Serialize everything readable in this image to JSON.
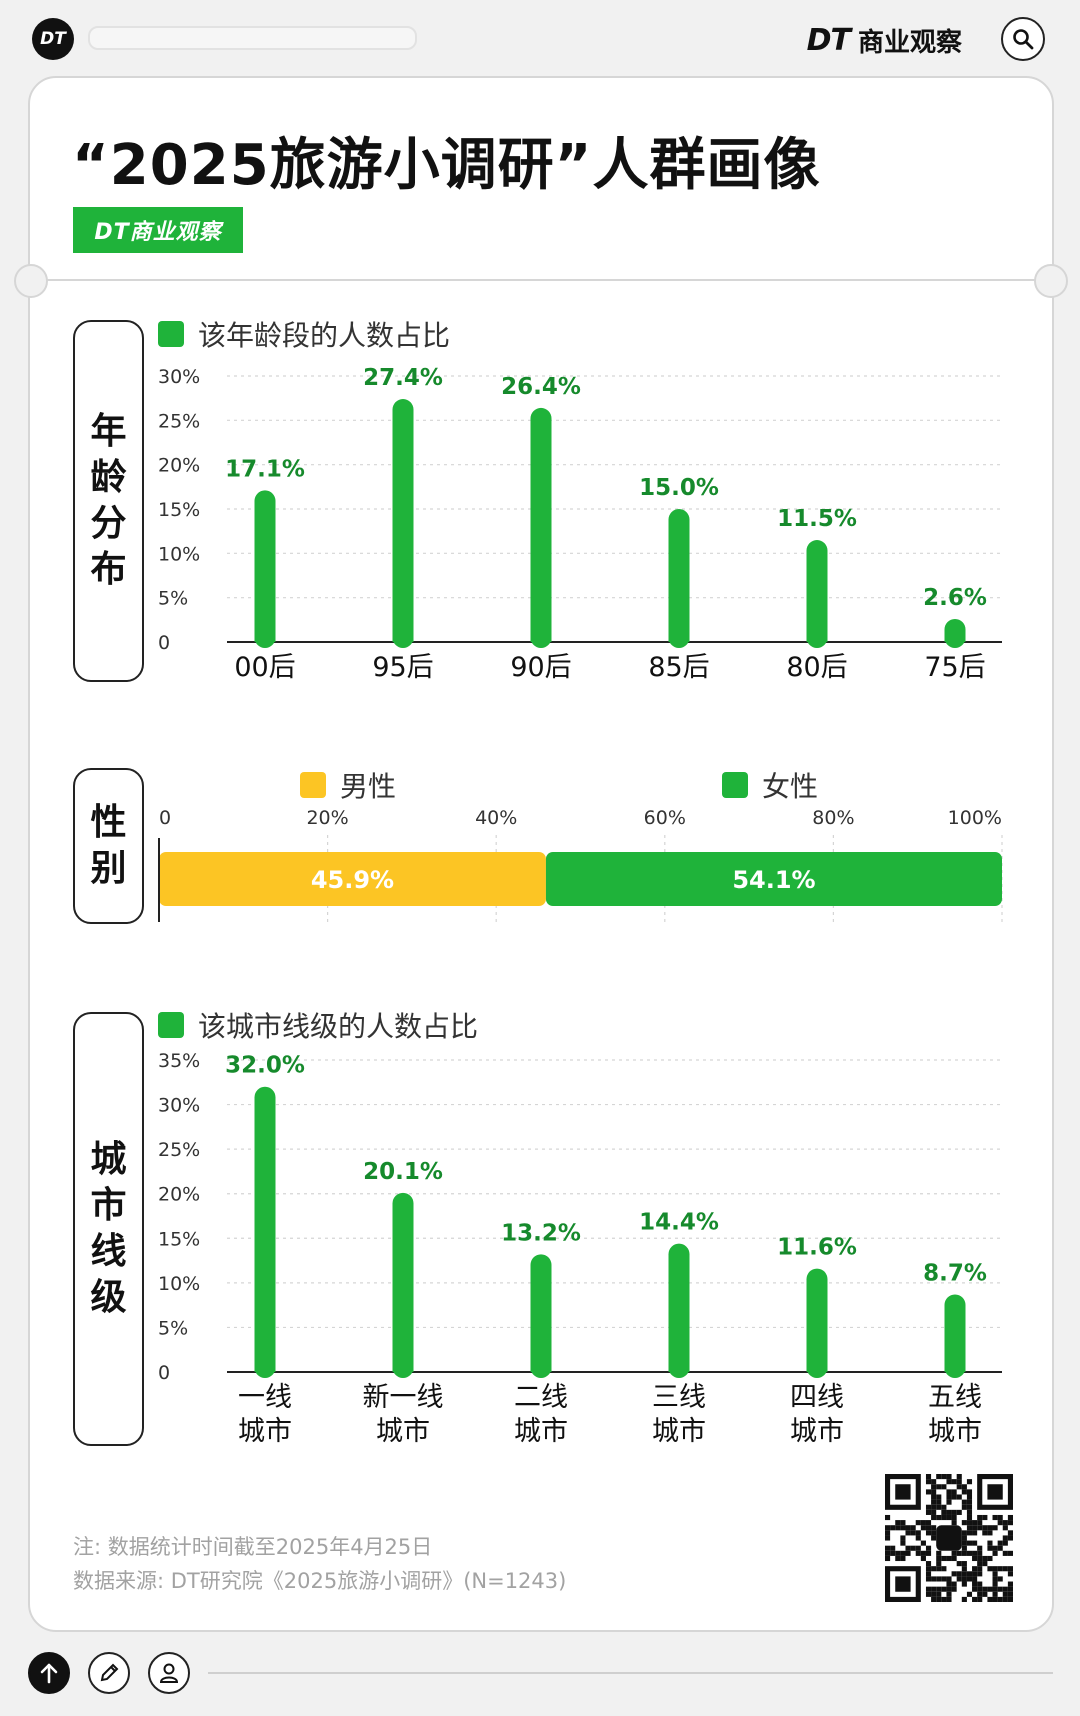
{
  "header": {
    "logo": "DT",
    "brand_dt": "DT",
    "brand_name": "商业观察",
    "search_icon": "search-icon"
  },
  "title": "“2025旅游小调研”人群画像",
  "badge": "DT商业观察",
  "colors": {
    "green": "#1fb33a",
    "yellow": "#fcc524",
    "label_green": "#168a2c"
  },
  "chart_data": [
    {
      "type": "bar",
      "side_label": [
        "年",
        "龄",
        "分",
        "布"
      ],
      "legend": "该年龄段的人数占比",
      "categories": [
        "00后",
        "95后",
        "90后",
        "85后",
        "80后",
        "75后"
      ],
      "values": [
        17.1,
        27.4,
        26.4,
        15.0,
        11.5,
        2.6
      ],
      "value_labels": [
        "17.1%",
        "27.4%",
        "26.4%",
        "15.0%",
        "11.5%",
        "2.6%"
      ],
      "ylim": [
        0,
        30
      ],
      "yticks": [
        "0",
        "5%",
        "10%",
        "15%",
        "20%",
        "25%",
        "30%"
      ],
      "grid": true
    },
    {
      "type": "bar",
      "orientation": "horizontal-stacked",
      "side_label": [
        "性",
        "别"
      ],
      "series": [
        {
          "name": "男性",
          "value": 45.9,
          "label": "45.9%",
          "color": "#fcc524"
        },
        {
          "name": "女性",
          "value": 54.1,
          "label": "54.1%",
          "color": "#1fb33a"
        }
      ],
      "xlim": [
        0,
        100
      ],
      "xticks": [
        "0",
        "20%",
        "40%",
        "60%",
        "80%",
        "100%"
      ]
    },
    {
      "type": "bar",
      "side_label": [
        "城",
        "市",
        "线",
        "级"
      ],
      "legend": "该城市线级的人数占比",
      "categories": [
        [
          "一线",
          "城市"
        ],
        [
          "新一线",
          "城市"
        ],
        [
          "二线",
          "城市"
        ],
        [
          "三线",
          "城市"
        ],
        [
          "四线",
          "城市"
        ],
        [
          "五线",
          "城市"
        ]
      ],
      "values": [
        32.0,
        20.1,
        13.2,
        14.4,
        11.6,
        8.7
      ],
      "value_labels": [
        "32.0%",
        "20.1%",
        "13.2%",
        "14.4%",
        "11.6%",
        "8.7%"
      ],
      "ylim": [
        0,
        35
      ],
      "yticks": [
        "0",
        "5%",
        "10%",
        "15%",
        "20%",
        "25%",
        "30%",
        "35%"
      ],
      "grid": true
    }
  ],
  "footer": {
    "note": "注: 数据统计时间截至2025年4月25日",
    "source": "数据来源: DT研究院《2025旅游小调研》(N=1243)",
    "qr_icon": "qr-code-icon"
  },
  "bottom_bar": {
    "icons": [
      "arrow-up-icon",
      "pencil-icon",
      "user-icon"
    ]
  }
}
